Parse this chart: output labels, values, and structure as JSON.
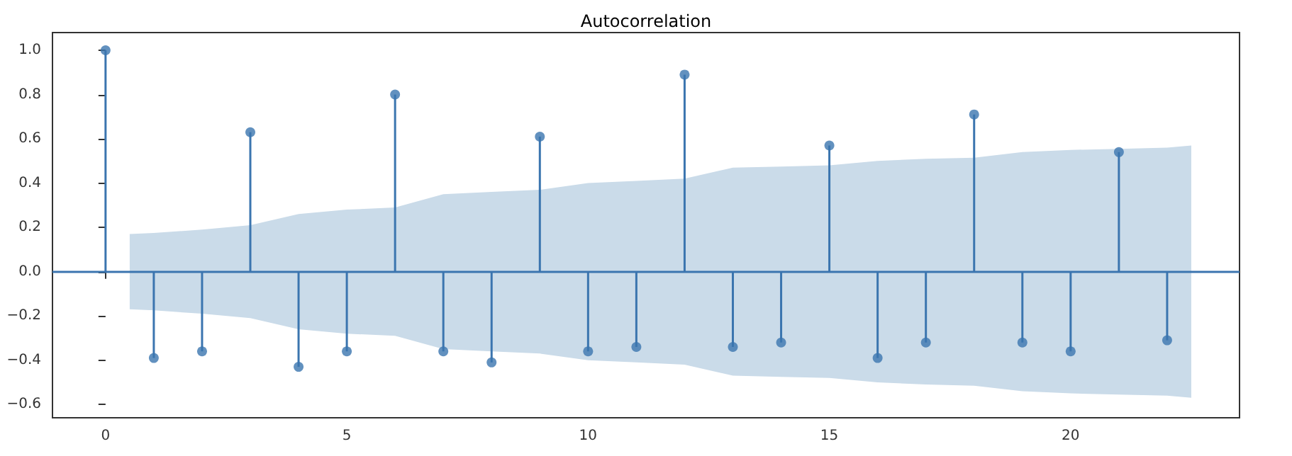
{
  "chart_data": {
    "type": "lollipop",
    "title": "Autocorrelation",
    "series": [
      {
        "color": "#3b75af",
        "x": [
          0,
          1,
          2,
          3,
          4,
          5,
          6,
          7,
          8,
          9,
          10,
          11,
          12,
          13,
          14,
          15,
          16,
          17,
          18,
          19,
          20,
          21,
          22
        ],
        "values": [
          1.0,
          -0.39,
          -0.36,
          0.63,
          -0.43,
          -0.36,
          0.8,
          -0.36,
          -0.41,
          0.61,
          -0.36,
          -0.34,
          0.89,
          -0.34,
          -0.32,
          0.57,
          -0.39,
          -0.32,
          0.71,
          -0.32,
          -0.36,
          0.54,
          -0.31
        ]
      },
      {
        "color": "#cadbe9",
        "x": [
          0.5,
          1,
          2,
          3,
          4,
          5,
          6,
          7,
          8,
          9,
          10,
          11,
          12,
          13,
          14,
          15,
          16,
          17,
          18,
          19,
          20,
          21,
          22,
          22.5
        ],
        "values": [
          null,
          null,
          null,
          null,
          null,
          null,
          null,
          null,
          null,
          null,
          null,
          null,
          null,
          null,
          null,
          null,
          null,
          null,
          null,
          null,
          null,
          null,
          null,
          null
        ],
        "lower": [
          -0.17,
          -0.175,
          -0.19,
          -0.21,
          -0.26,
          -0.28,
          -0.29,
          -0.35,
          -0.36,
          -0.37,
          -0.4,
          -0.41,
          -0.42,
          -0.47,
          -0.475,
          -0.48,
          -0.5,
          -0.51,
          -0.515,
          -0.54,
          -0.55,
          -0.555,
          -0.56,
          -0.57
        ],
        "upper": [
          0.17,
          0.175,
          0.19,
          0.21,
          0.26,
          0.28,
          0.29,
          0.35,
          0.36,
          0.37,
          0.4,
          0.41,
          0.42,
          0.47,
          0.475,
          0.48,
          0.5,
          0.51,
          0.515,
          0.54,
          0.55,
          0.555,
          0.56,
          0.57
        ]
      }
    ],
    "ref_lines": [
      {
        "axis": "y",
        "value": 0,
        "color": "#3b75af"
      }
    ],
    "marker": "circle",
    "grid": false,
    "xlim": [
      -1.1,
      23.5
    ],
    "xticks": [
      0,
      5,
      10,
      15,
      20
    ],
    "ylim": [
      -0.66,
      1.08
    ],
    "yticks": [
      {
        "value": -0.6,
        "label": "−0.6"
      },
      {
        "value": -0.4,
        "label": "−0.4"
      },
      {
        "value": -0.2,
        "label": "−0.2"
      },
      {
        "value": 0,
        "label": "0.0"
      },
      {
        "value": 0.2,
        "label": "0.2"
      },
      {
        "value": 0.4,
        "label": "0.4"
      },
      {
        "value": 0.6,
        "label": "0.6"
      },
      {
        "value": 0.8,
        "label": "0.8"
      },
      {
        "value": 1.0,
        "label": "1.0"
      }
    ]
  }
}
